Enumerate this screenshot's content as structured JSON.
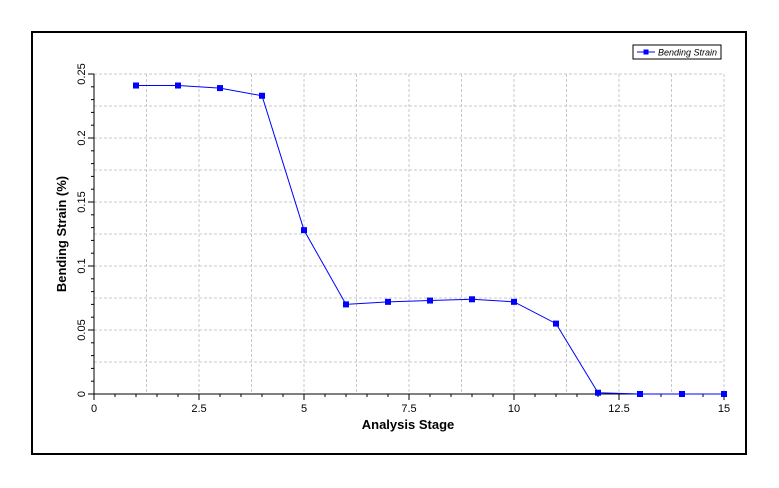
{
  "chart_data": {
    "type": "line",
    "title": "",
    "xlabel": "Analysis Stage",
    "ylabel": "Bending Strain (%)",
    "xlim": [
      0,
      15
    ],
    "ylim": [
      0,
      0.25
    ],
    "x_ticks": [
      0,
      2.5,
      5,
      7.5,
      10,
      12.5,
      15
    ],
    "x_tick_labels": [
      "0",
      "2.5",
      "5",
      "7.5",
      "10",
      "12.5",
      "15"
    ],
    "y_ticks": [
      0,
      0.05,
      0.1,
      0.15,
      0.2,
      0.25
    ],
    "y_tick_labels": [
      "0",
      "0.05",
      "0.1",
      "0.15",
      "0.2",
      "0.25"
    ],
    "grid": true,
    "legend_position": "top-right",
    "series": [
      {
        "name": "Bending Strain",
        "color": "#0000ff",
        "marker": "square",
        "x": [
          1,
          2,
          3,
          4,
          5,
          6,
          7,
          8,
          9,
          10,
          11,
          12,
          13,
          14,
          15
        ],
        "y": [
          0.241,
          0.241,
          0.239,
          0.233,
          0.128,
          0.07,
          0.072,
          0.073,
          0.074,
          0.072,
          0.055,
          0.001,
          0.0,
          0.0,
          0.0
        ]
      }
    ]
  }
}
